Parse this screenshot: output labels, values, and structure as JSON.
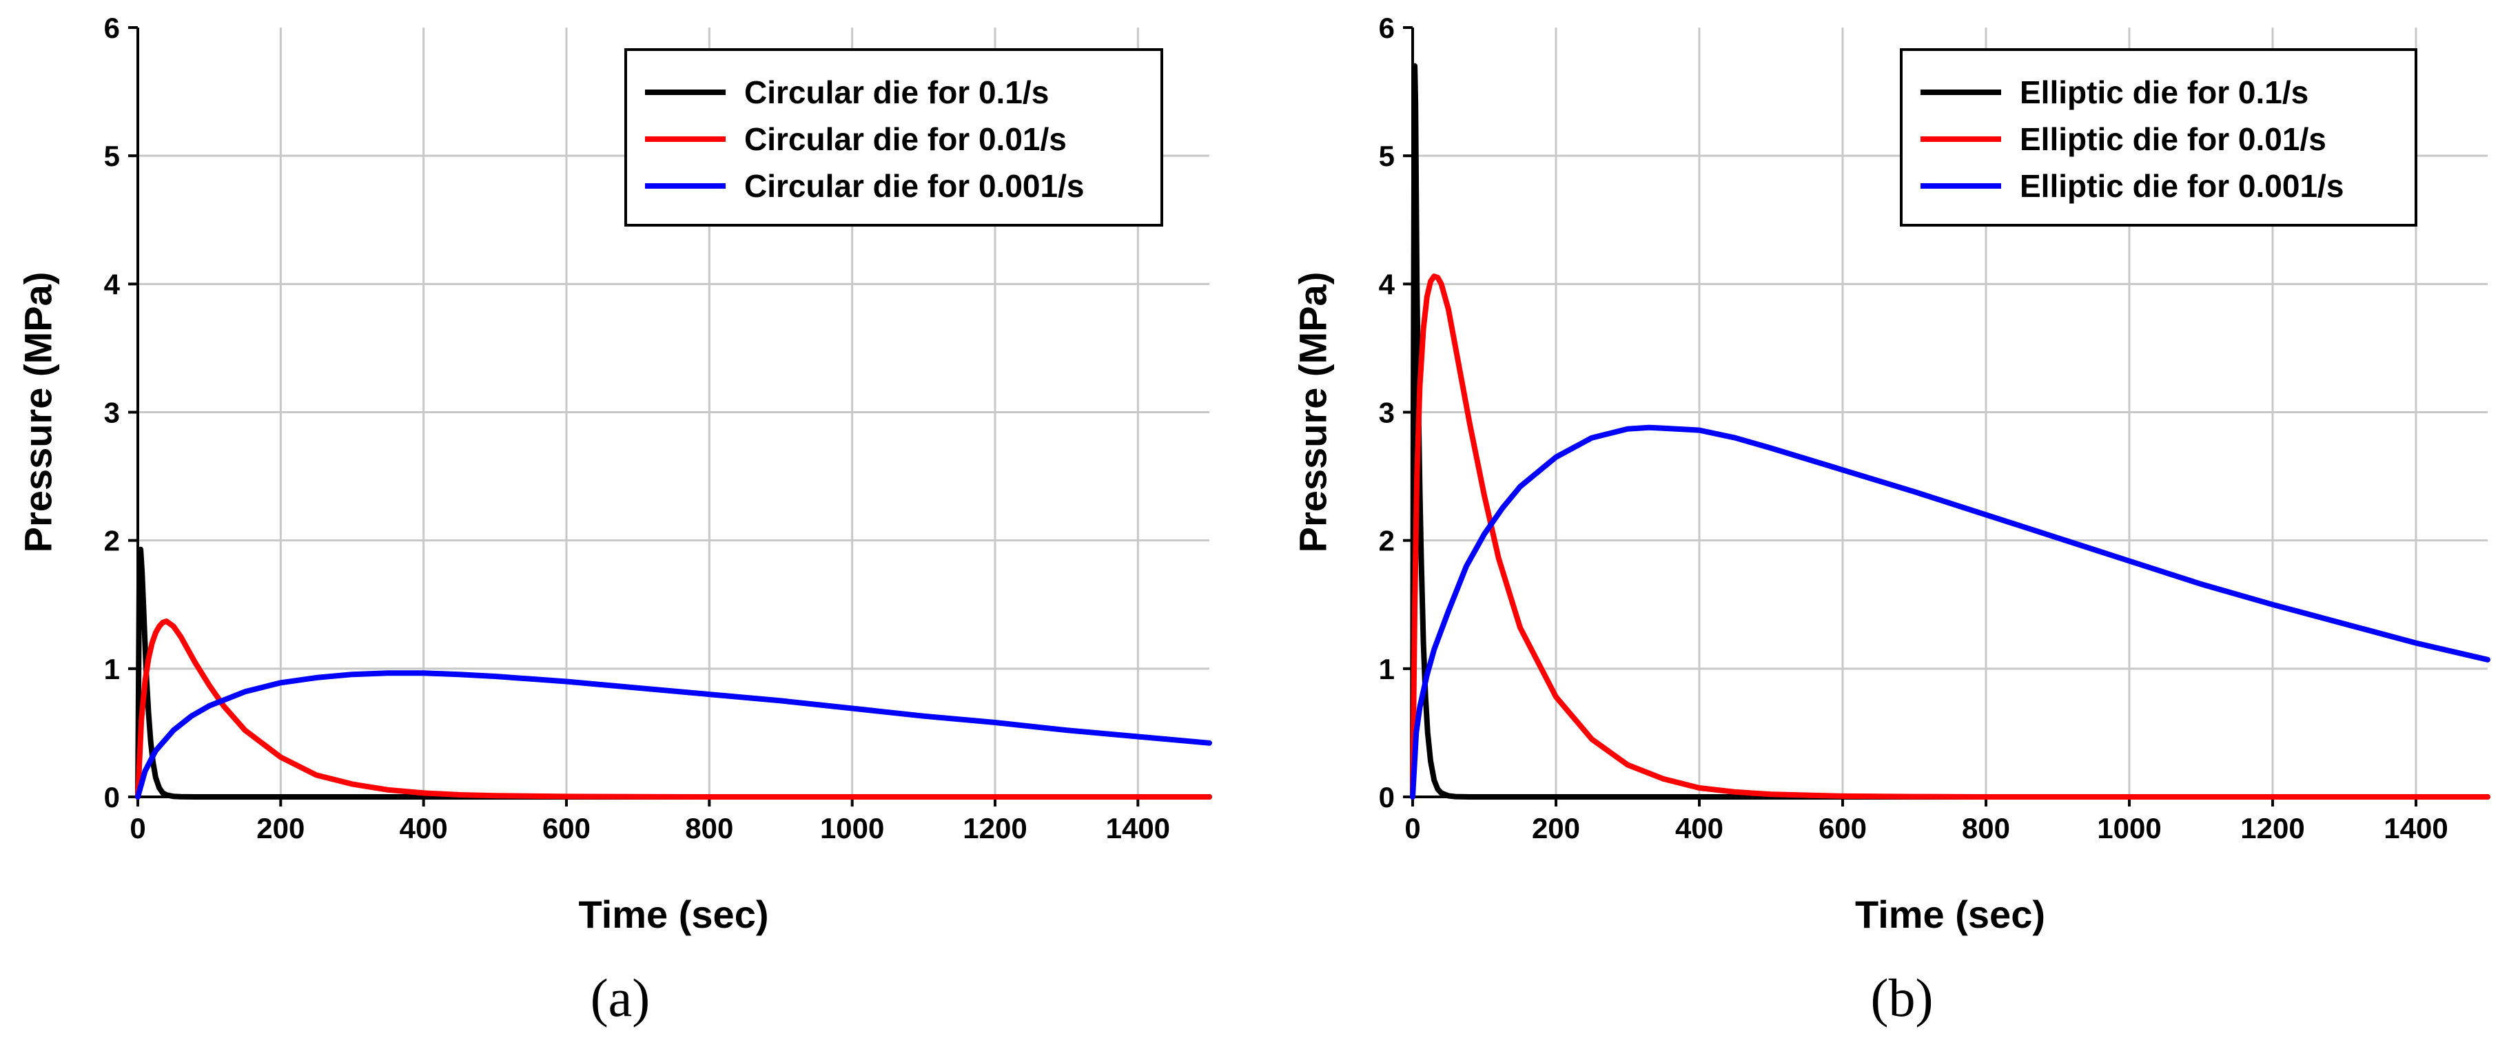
{
  "chart_data": [
    {
      "type": "line",
      "panel_label": "(a)",
      "xlabel": "Time (sec)",
      "ylabel": "Pressure (MPa)",
      "xlim": [
        0,
        1500
      ],
      "ylim": [
        0,
        6
      ],
      "xticks": [
        "0",
        "200",
        "400",
        "600",
        "800",
        "1000",
        "1200",
        "1400"
      ],
      "yticks": [
        "0",
        "1",
        "2",
        "3",
        "4",
        "5",
        "6"
      ],
      "grid": true,
      "legend_position": "top-right",
      "series": [
        {
          "name": "Circular die for 0.1/s",
          "color": "#000000",
          "x": [
            0,
            2,
            4,
            6,
            8,
            10,
            12,
            15,
            18,
            21,
            25,
            30,
            35,
            40,
            50,
            60,
            80,
            100,
            1500
          ],
          "y": [
            0,
            1.75,
            1.93,
            1.75,
            1.48,
            1.2,
            0.95,
            0.65,
            0.43,
            0.28,
            0.15,
            0.07,
            0.03,
            0.015,
            0.004,
            0.001,
            0,
            0,
            0
          ]
        },
        {
          "name": "Circular die for 0.01/s",
          "color": "#ff0000",
          "x": [
            0,
            5,
            10,
            15,
            20,
            25,
            30,
            35,
            40,
            50,
            60,
            80,
            100,
            120,
            150,
            200,
            250,
            300,
            350,
            400,
            450,
            500,
            600,
            700,
            800,
            1500
          ],
          "y": [
            0,
            0.6,
            0.9,
            1.08,
            1.2,
            1.28,
            1.33,
            1.36,
            1.37,
            1.33,
            1.25,
            1.05,
            0.87,
            0.71,
            0.52,
            0.31,
            0.17,
            0.1,
            0.055,
            0.03,
            0.016,
            0.009,
            0.003,
            0.001,
            0,
            0
          ]
        },
        {
          "name": "Circular die for 0.001/s",
          "color": "#0000ff",
          "x": [
            0,
            10,
            25,
            50,
            75,
            100,
            150,
            200,
            250,
            300,
            350,
            400,
            450,
            500,
            600,
            700,
            800,
            900,
            1000,
            1100,
            1200,
            1300,
            1400,
            1500
          ],
          "y": [
            0,
            0.2,
            0.36,
            0.52,
            0.63,
            0.71,
            0.82,
            0.89,
            0.93,
            0.955,
            0.965,
            0.965,
            0.955,
            0.94,
            0.9,
            0.85,
            0.8,
            0.75,
            0.69,
            0.63,
            0.58,
            0.52,
            0.47,
            0.42
          ]
        }
      ]
    },
    {
      "type": "line",
      "panel_label": "(b)",
      "xlabel": "Time (sec)",
      "ylabel": "Pressure (MPa)",
      "xlim": [
        0,
        1500
      ],
      "ylim": [
        0,
        6
      ],
      "xticks": [
        "0",
        "200",
        "400",
        "600",
        "800",
        "1000",
        "1200",
        "1400"
      ],
      "yticks": [
        "0",
        "1",
        "2",
        "3",
        "4",
        "5",
        "6"
      ],
      "grid": true,
      "legend_position": "top-right",
      "series": [
        {
          "name": "Elliptic die for 0.1/s",
          "color": "#000000",
          "x": [
            0,
            1,
            2,
            3,
            4,
            5,
            6,
            8,
            10,
            12,
            15,
            18,
            21,
            25,
            30,
            35,
            40,
            50,
            60,
            80,
            1500
          ],
          "y": [
            0,
            3.0,
            5.0,
            5.7,
            5.4,
            4.7,
            4.0,
            3.1,
            2.4,
            1.85,
            1.2,
            0.78,
            0.5,
            0.28,
            0.13,
            0.06,
            0.03,
            0.008,
            0.002,
            0,
            0
          ]
        },
        {
          "name": "Elliptic die for 0.01/s",
          "color": "#ff0000",
          "x": [
            0,
            3,
            6,
            10,
            15,
            20,
            25,
            30,
            35,
            40,
            50,
            60,
            80,
            100,
            120,
            150,
            200,
            250,
            300,
            350,
            400,
            450,
            500,
            600,
            700,
            800,
            1500
          ],
          "y": [
            0,
            1.5,
            2.5,
            3.2,
            3.65,
            3.9,
            4.02,
            4.06,
            4.05,
            4.0,
            3.8,
            3.5,
            2.9,
            2.35,
            1.86,
            1.32,
            0.78,
            0.45,
            0.25,
            0.14,
            0.07,
            0.038,
            0.02,
            0.006,
            0.002,
            0,
            0
          ]
        },
        {
          "name": "Elliptic die for 0.001/s",
          "color": "#0000ff",
          "x": [
            0,
            5,
            10,
            20,
            30,
            50,
            75,
            100,
            125,
            150,
            200,
            250,
            300,
            330,
            350,
            400,
            450,
            500,
            600,
            700,
            800,
            900,
            1000,
            1100,
            1200,
            1300,
            1400,
            1500
          ],
          "y": [
            0,
            0.5,
            0.7,
            0.95,
            1.15,
            1.45,
            1.8,
            2.05,
            2.25,
            2.42,
            2.65,
            2.8,
            2.87,
            2.88,
            2.875,
            2.86,
            2.8,
            2.72,
            2.55,
            2.38,
            2.2,
            2.02,
            1.84,
            1.66,
            1.5,
            1.35,
            1.2,
            1.07
          ]
        }
      ]
    }
  ]
}
